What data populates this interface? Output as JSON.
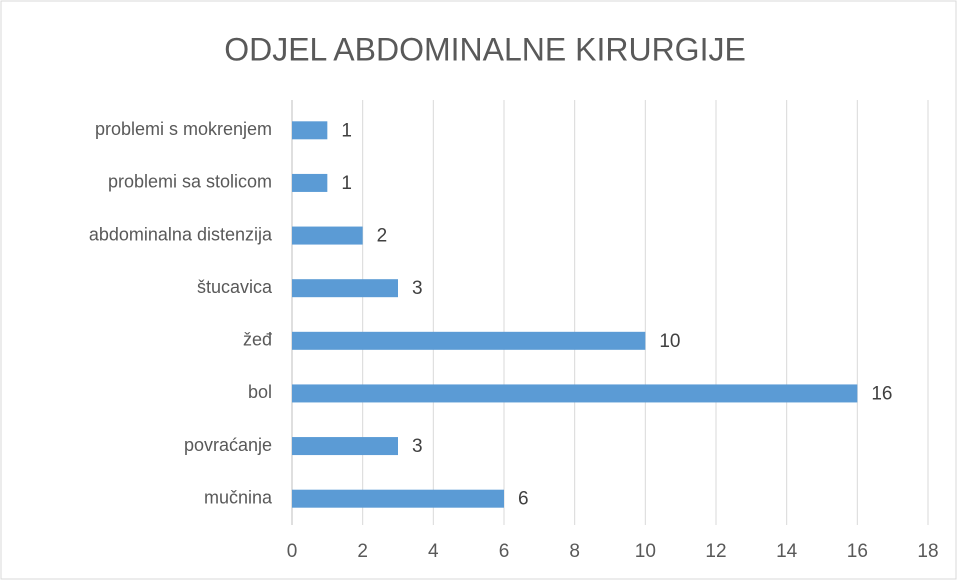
{
  "chart_data": {
    "type": "bar",
    "orientation": "horizontal",
    "title": "ODJEL ABDOMINALNE KIRURGIJE",
    "categories": [
      "problemi s mokrenjem",
      "problemi sa stolicom",
      "abdominalna distenzija",
      "štucavica",
      "žeđ",
      "bol",
      "povraćanje",
      "mučnina"
    ],
    "values": [
      1,
      1,
      2,
      3,
      10,
      16,
      3,
      6
    ],
    "color": "#5b9bd5",
    "xlim": [
      0,
      18
    ],
    "xticks": [
      0,
      2,
      4,
      6,
      8,
      10,
      12,
      14,
      16,
      18
    ],
    "grid": true
  }
}
